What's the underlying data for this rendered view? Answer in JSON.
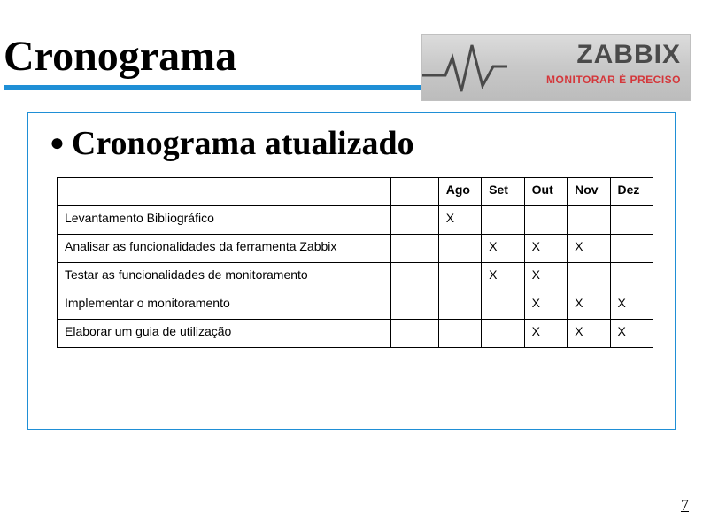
{
  "slide": {
    "title": "Cronograma",
    "subtitle": "Cronograma atualizado",
    "page_number": "7"
  },
  "logo": {
    "brand": "ZABBIX",
    "tagline": "MONITORAR É PRECISO",
    "brand_color": "#4a4a4a",
    "tagline_color": "#d4373b",
    "background_gradient_top": "#dcdcdc",
    "background_gradient_bottom": "#bcbcbc",
    "ekg_stroke": "#4a4a4a"
  },
  "style": {
    "accent_color": "#1f8fd6",
    "text_color": "#000000",
    "table_border_color": "#000000",
    "page_bg": "#ffffff",
    "title_fontsize_pt": 36,
    "subtitle_fontsize_pt": 28,
    "table_fontsize_pt": 11
  },
  "table": {
    "columns": [
      "",
      "",
      "Ago",
      "Set",
      "Out",
      "Nov",
      "Dez"
    ],
    "rows": [
      {
        "activity": "Levantamento Bibliográfico",
        "blank": "",
        "months": [
          "X",
          "",
          "",
          "",
          ""
        ]
      },
      {
        "activity": "Analisar as funcionalidades da ferramenta Zabbix",
        "blank": "",
        "months": [
          "",
          "X",
          "X",
          "X",
          ""
        ]
      },
      {
        "activity": "Testar as funcionalidades de monitoramento",
        "blank": "",
        "months": [
          "",
          "X",
          "X",
          "",
          ""
        ]
      },
      {
        "activity": "Implementar o monitoramento",
        "blank": "",
        "months": [
          "",
          "",
          "X",
          "X",
          "X"
        ]
      },
      {
        "activity": "Elaborar um guia de utilização",
        "blank": "",
        "months": [
          "",
          "",
          "X",
          "X",
          "X"
        ]
      }
    ]
  }
}
